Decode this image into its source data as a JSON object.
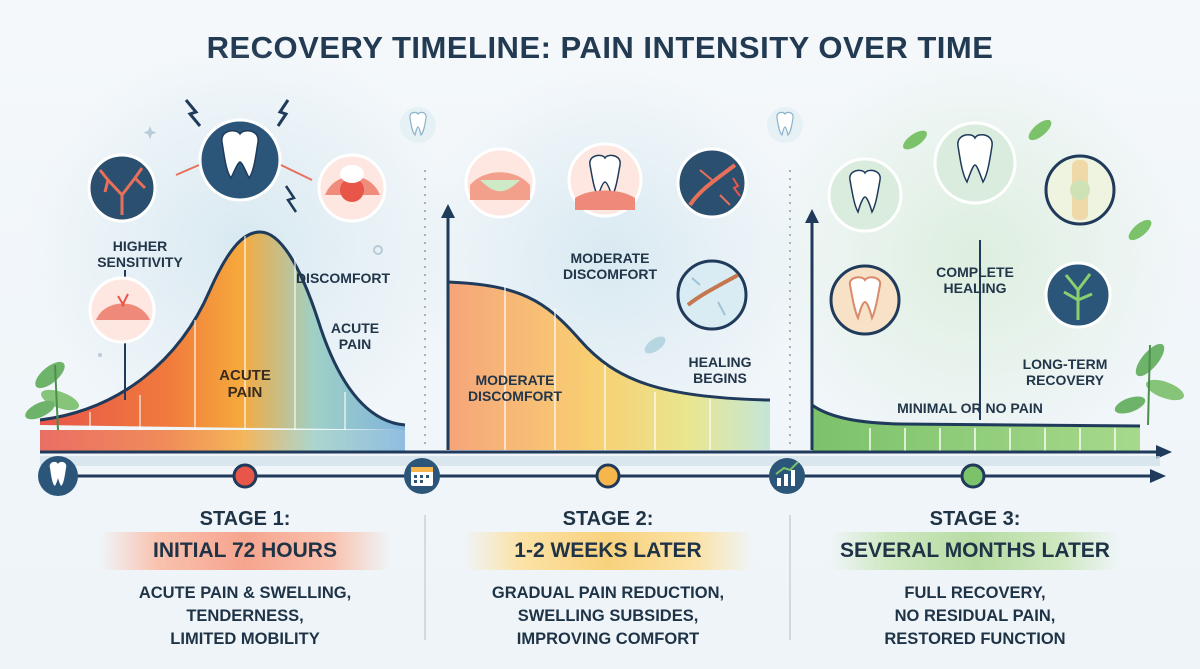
{
  "title": "RECOVERY TIMELINE: PAIN INTENSITY OVER TIME",
  "colors": {
    "stage1": "#ef6b4b",
    "stage2": "#f6b64b",
    "stage3": "#7cc26a",
    "timeline": "#1f3a5a"
  },
  "stages": [
    {
      "heading": "STAGE 1:",
      "period": "INITIAL 72 HOURS",
      "description": [
        "ACUTE PAIN & SWELLING,",
        "TENDERNESS,",
        "LIMITED MOBILITY"
      ],
      "labels": {
        "higher_sensitivity": "HIGHER\nSENSITIVITY",
        "discomfort": "DISCOMFORT",
        "acute_pain_side": "ACUTE\nPAIN",
        "acute_pain_center": "ACUTE\nPAIN"
      },
      "timeline_icon": "tooth-icon"
    },
    {
      "heading": "STAGE 2:",
      "period": "1-2 WEEKS LATER",
      "description": [
        "GRADUAL PAIN REDUCTION,",
        "SWELLING SUBSIDES,",
        "IMPROVING COMFORT"
      ],
      "labels": {
        "moderate_discomfort_top": "MODERATE\nDISCOMFORT",
        "moderate_discomfort_curve": "MODERATE\nDISCOMFORT",
        "healing_begins": "HEALING\nBEGINS"
      },
      "timeline_icon": "calendar-icon"
    },
    {
      "heading": "STAGE 3:",
      "period": "SEVERAL MONTHS LATER",
      "description": [
        "FULL RECOVERY,",
        "NO RESIDUAL PAIN,",
        "RESTORED FUNCTION"
      ],
      "labels": {
        "complete_healing": "COMPLETE\nHEALING",
        "long_term_recovery": "LONG-TERM\nRECOVERY",
        "minimal_pain": "MINIMAL OR NO PAIN"
      },
      "timeline_icon": "chart-icon"
    }
  ]
}
